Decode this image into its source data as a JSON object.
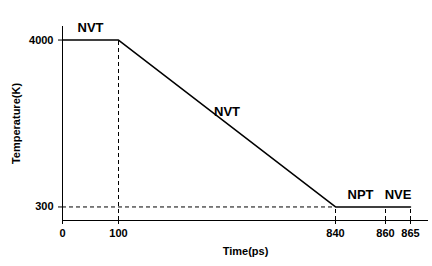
{
  "chart_data": {
    "type": "line",
    "x_label": "Time(ps)",
    "y_label": "Temperature(K)",
    "x": [
      0,
      100,
      840,
      860,
      865
    ],
    "values": [
      4000,
      4000,
      300,
      300,
      300
    ],
    "color": "#000000",
    "line_style": "solid",
    "xlim": [
      0,
      880
    ],
    "ylim": [
      0,
      4300
    ],
    "xticks": [
      0,
      100,
      840,
      860,
      865
    ],
    "yticks": [
      300,
      4000
    ],
    "grid": false,
    "annotations": [
      {
        "text": "NVT",
        "x_start": 0,
        "x_end": 100
      },
      {
        "text": "NVT",
        "x_start": 100,
        "x_end": 840
      },
      {
        "text": "NPT",
        "x_start": 840,
        "x_end": 860
      },
      {
        "text": "NVE",
        "x_start": 860,
        "x_end": 865
      }
    ]
  }
}
